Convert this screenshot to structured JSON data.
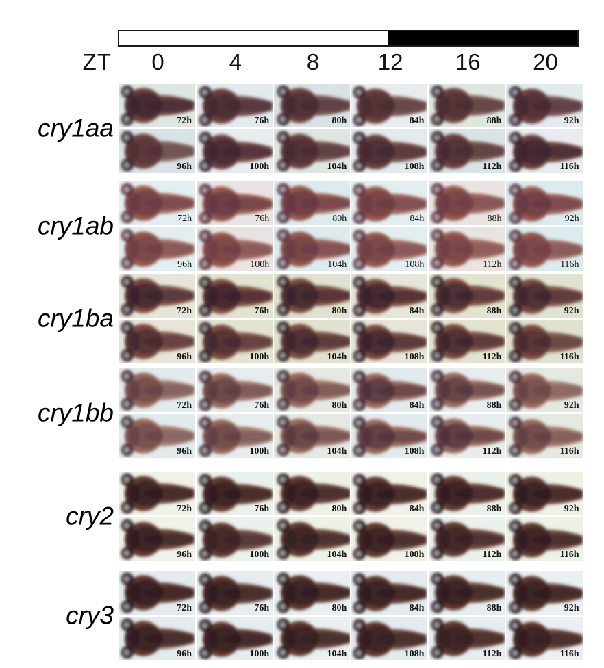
{
  "zt_axis": {
    "label": "ZT",
    "ticks": [
      "0",
      "4",
      "8",
      "12",
      "16",
      "20"
    ]
  },
  "light_dark_bar": {
    "light_color": "#ffffff",
    "dark_color": "#000000",
    "light_phase_zt": "ZT0-ZT12",
    "dark_phase_zt": "ZT12-ZT24"
  },
  "timepoints": {
    "row1": [
      "72h",
      "76h",
      "80h",
      "84h",
      "88h",
      "92h"
    ],
    "row2": [
      "96h",
      "100h",
      "104h",
      "108h",
      "112h",
      "116h"
    ]
  },
  "genes": [
    {
      "name": "cry1aa",
      "timestamps_bold": true,
      "colors": {
        "body": "#6d4340",
        "dark": "#39232f",
        "backgrounds": [
          "#dde7e0",
          "#e3eaee",
          "#d9e3e5",
          "#e8ecef"
        ]
      },
      "staining_intensity": [
        [
          0.95,
          0.75,
          0.6,
          0.5,
          0.5,
          0.6
        ],
        [
          0.3,
          0.85,
          0.6,
          0.7,
          0.55,
          0.95
        ]
      ]
    },
    {
      "name": "cry1ab",
      "timestamps_bold": false,
      "colors": {
        "body": "#96584c",
        "dark": "#5d3344",
        "backgrounds": [
          "#dcebee",
          "#e3eef0",
          "#e9e4e2"
        ]
      },
      "staining_intensity": [
        [
          0.7,
          0.85,
          0.8,
          0.65,
          0.55,
          0.75
        ],
        [
          0.5,
          0.45,
          0.6,
          0.5,
          0.4,
          0.45
        ]
      ]
    },
    {
      "name": "cry1ba",
      "timestamps_bold": true,
      "colors": {
        "body": "#7d4b41",
        "dark": "#2f1d2b",
        "backgrounds": [
          "#e2e4d0",
          "#dfe2cf",
          "#e7e5d8"
        ]
      },
      "staining_intensity": [
        [
          0.8,
          0.9,
          0.85,
          0.9,
          0.75,
          0.7
        ],
        [
          0.6,
          0.6,
          0.75,
          0.8,
          0.7,
          0.5
        ]
      ]
    },
    {
      "name": "cry1bb",
      "timestamps_bold": true,
      "colors": {
        "body": "#9a6a5c",
        "dark": "#452c3a",
        "backgrounds": [
          "#e1eaec",
          "#e7edee",
          "#e4e9e2"
        ]
      },
      "staining_intensity": [
        [
          0.45,
          0.6,
          0.55,
          0.9,
          0.75,
          0.35
        ],
        [
          0.4,
          0.5,
          0.65,
          0.85,
          0.9,
          0.5
        ]
      ]
    },
    {
      "name": "cry2",
      "timestamps_bold": true,
      "colors": {
        "body": "#643c32",
        "dark": "#2a1a22",
        "backgrounds": [
          "#edf2e6",
          "#f0f2e9",
          "#eaf0ea"
        ]
      },
      "staining_intensity": [
        [
          0.9,
          0.85,
          0.8,
          0.85,
          0.8,
          0.85
        ],
        [
          0.85,
          0.6,
          0.75,
          0.8,
          0.7,
          0.8
        ]
      ]
    },
    {
      "name": "cry3",
      "timestamps_bold": true,
      "colors": {
        "body": "#5f392f",
        "dark": "#2a1a20",
        "backgrounds": [
          "#e6edf0",
          "#eaf0f2",
          "#e4ebee"
        ]
      },
      "staining_intensity": [
        [
          0.9,
          0.8,
          0.85,
          0.85,
          0.8,
          0.85
        ],
        [
          0.8,
          0.85,
          0.75,
          0.75,
          0.7,
          0.75
        ]
      ]
    }
  ]
}
